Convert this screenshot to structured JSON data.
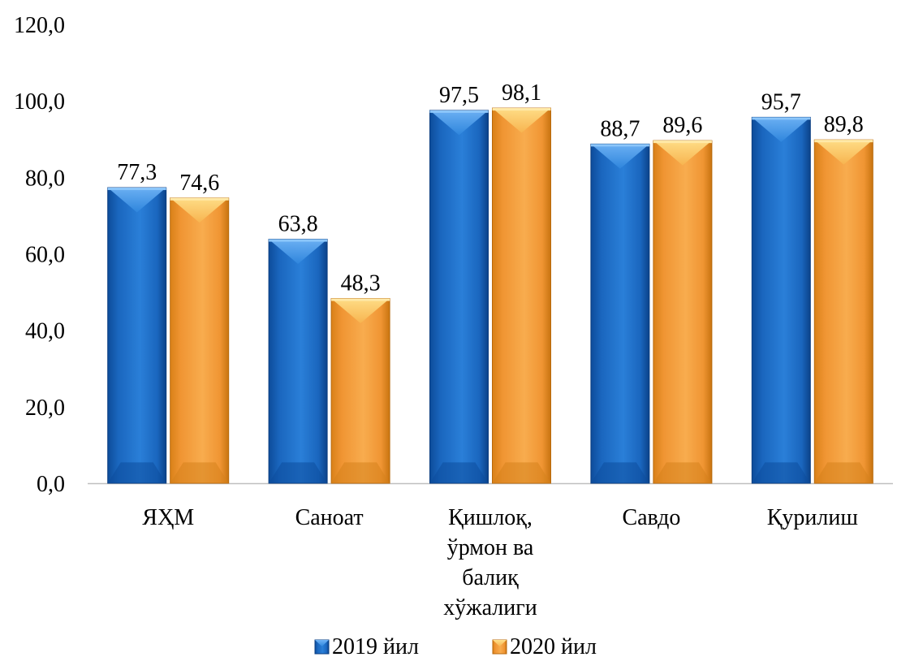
{
  "chart_data": {
    "type": "bar",
    "categories": [
      "ЯҲМ",
      "Саноат",
      "Қишлоқ, ўрмон ва балиқ хўжалиги",
      "Савдо",
      "Қурилиш"
    ],
    "category_lines": [
      [
        "ЯҲМ"
      ],
      [
        "Саноат"
      ],
      [
        "Қишлоқ,",
        "ўрмон ва",
        "балиқ",
        "хўжалиги"
      ],
      [
        "Савдо"
      ],
      [
        "Қурилиш"
      ]
    ],
    "series": [
      {
        "name": "2019 йил",
        "values": [
          77.3,
          63.8,
          97.5,
          88.7,
          95.7
        ],
        "labels": [
          "77,3",
          "63,8",
          "97,5",
          "88,7",
          "95,7"
        ],
        "color": "#1F6FC5"
      },
      {
        "name": "2020 йил",
        "values": [
          74.6,
          48.3,
          98.1,
          89.6,
          89.8
        ],
        "labels": [
          "74,6",
          "48,3",
          "98,1",
          "89,6",
          "89,8"
        ],
        "color": "#F4A340"
      }
    ],
    "ylim": [
      0,
      120
    ],
    "yticks": [
      "0,0",
      "20,0",
      "40,0",
      "60,0",
      "80,0",
      "100,0",
      "120,0"
    ],
    "grid": false,
    "legend": "bottom",
    "title": "",
    "xlabel": "",
    "ylabel": ""
  }
}
